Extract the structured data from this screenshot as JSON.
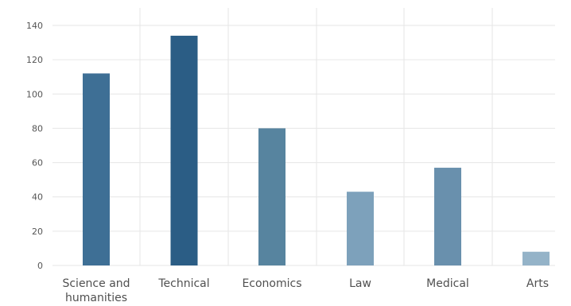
{
  "chart_data": {
    "type": "bar",
    "categories": [
      [
        "Science and",
        "humanities"
      ],
      [
        "Technical"
      ],
      [
        "Economics"
      ],
      [
        "Law"
      ],
      [
        "Medical"
      ],
      [
        "Arts"
      ]
    ],
    "values": [
      112,
      134,
      80,
      43,
      57,
      8
    ],
    "bar_colors": [
      "#3e6f95",
      "#2b5d85",
      "#57849f",
      "#7da1bb",
      "#6990ad",
      "#94b3c8"
    ],
    "ylim": [
      0,
      150
    ],
    "yticks": [
      0,
      20,
      40,
      60,
      80,
      100,
      120,
      140
    ],
    "grid": {
      "horizontal": true,
      "vertical": true,
      "color": "#e6e6e6"
    },
    "title": "",
    "xlabel": "",
    "ylabel": "",
    "legend": "none"
  }
}
